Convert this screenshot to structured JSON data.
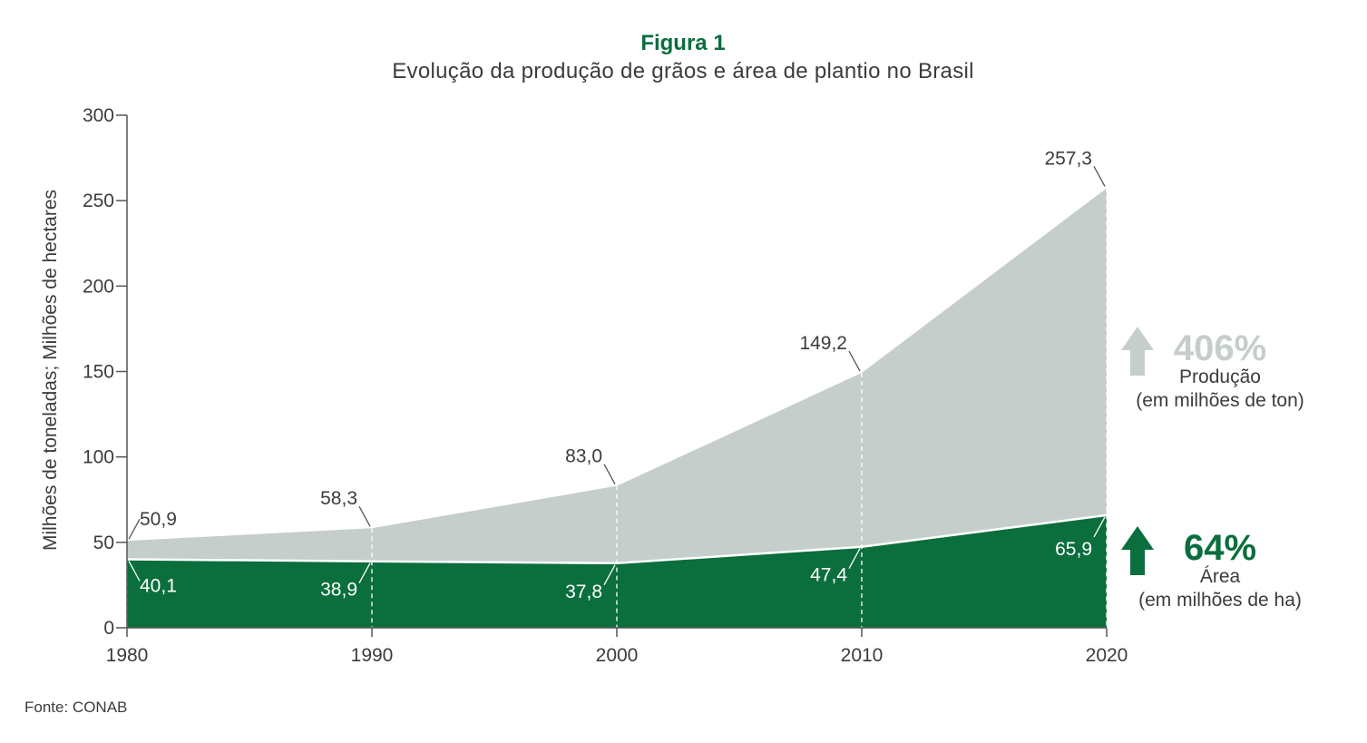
{
  "figure_label": "Figura 1",
  "source": "Fonte: CONAB",
  "chart_data": {
    "type": "area",
    "title": "Evolução da produção de grãos e área de plantio no Brasil",
    "ylabel": "Milhões de toneladas; Milhões de hectares",
    "xlabel": "",
    "x": [
      1980,
      1990,
      2000,
      2010,
      2020
    ],
    "x_tick_labels": [
      "1980",
      "1990",
      "2000",
      "2010",
      "2020"
    ],
    "ylim": [
      0,
      300
    ],
    "y_ticks": [
      0,
      50,
      100,
      150,
      200,
      250,
      300
    ],
    "y_tick_labels": [
      "0",
      "50",
      "100",
      "150",
      "200",
      "250",
      "300"
    ],
    "grid": false,
    "series": [
      {
        "key": "producao",
        "values": [
          50.9,
          58.3,
          83.0,
          149.2,
          257.3
        ],
        "labels": [
          "50,9",
          "58,3",
          "83,0",
          "149,2",
          "257,3"
        ],
        "color": "#c5cecb"
      },
      {
        "key": "area",
        "values": [
          40.1,
          38.9,
          37.8,
          47.4,
          65.9
        ],
        "labels": [
          "40,1",
          "38,9",
          "37,8",
          "47,4",
          "65,9"
        ],
        "color": "#0b6e3d"
      }
    ],
    "annotations": {
      "producao": {
        "percent": "406%",
        "line1": "Produção",
        "line2": "(em milhões de ton)",
        "arrow_color": "#c5cecb"
      },
      "area": {
        "percent": "64%",
        "line1": "Área",
        "line2": "(em milhões de ha)",
        "arrow_color": "#0b6e3d"
      }
    }
  }
}
